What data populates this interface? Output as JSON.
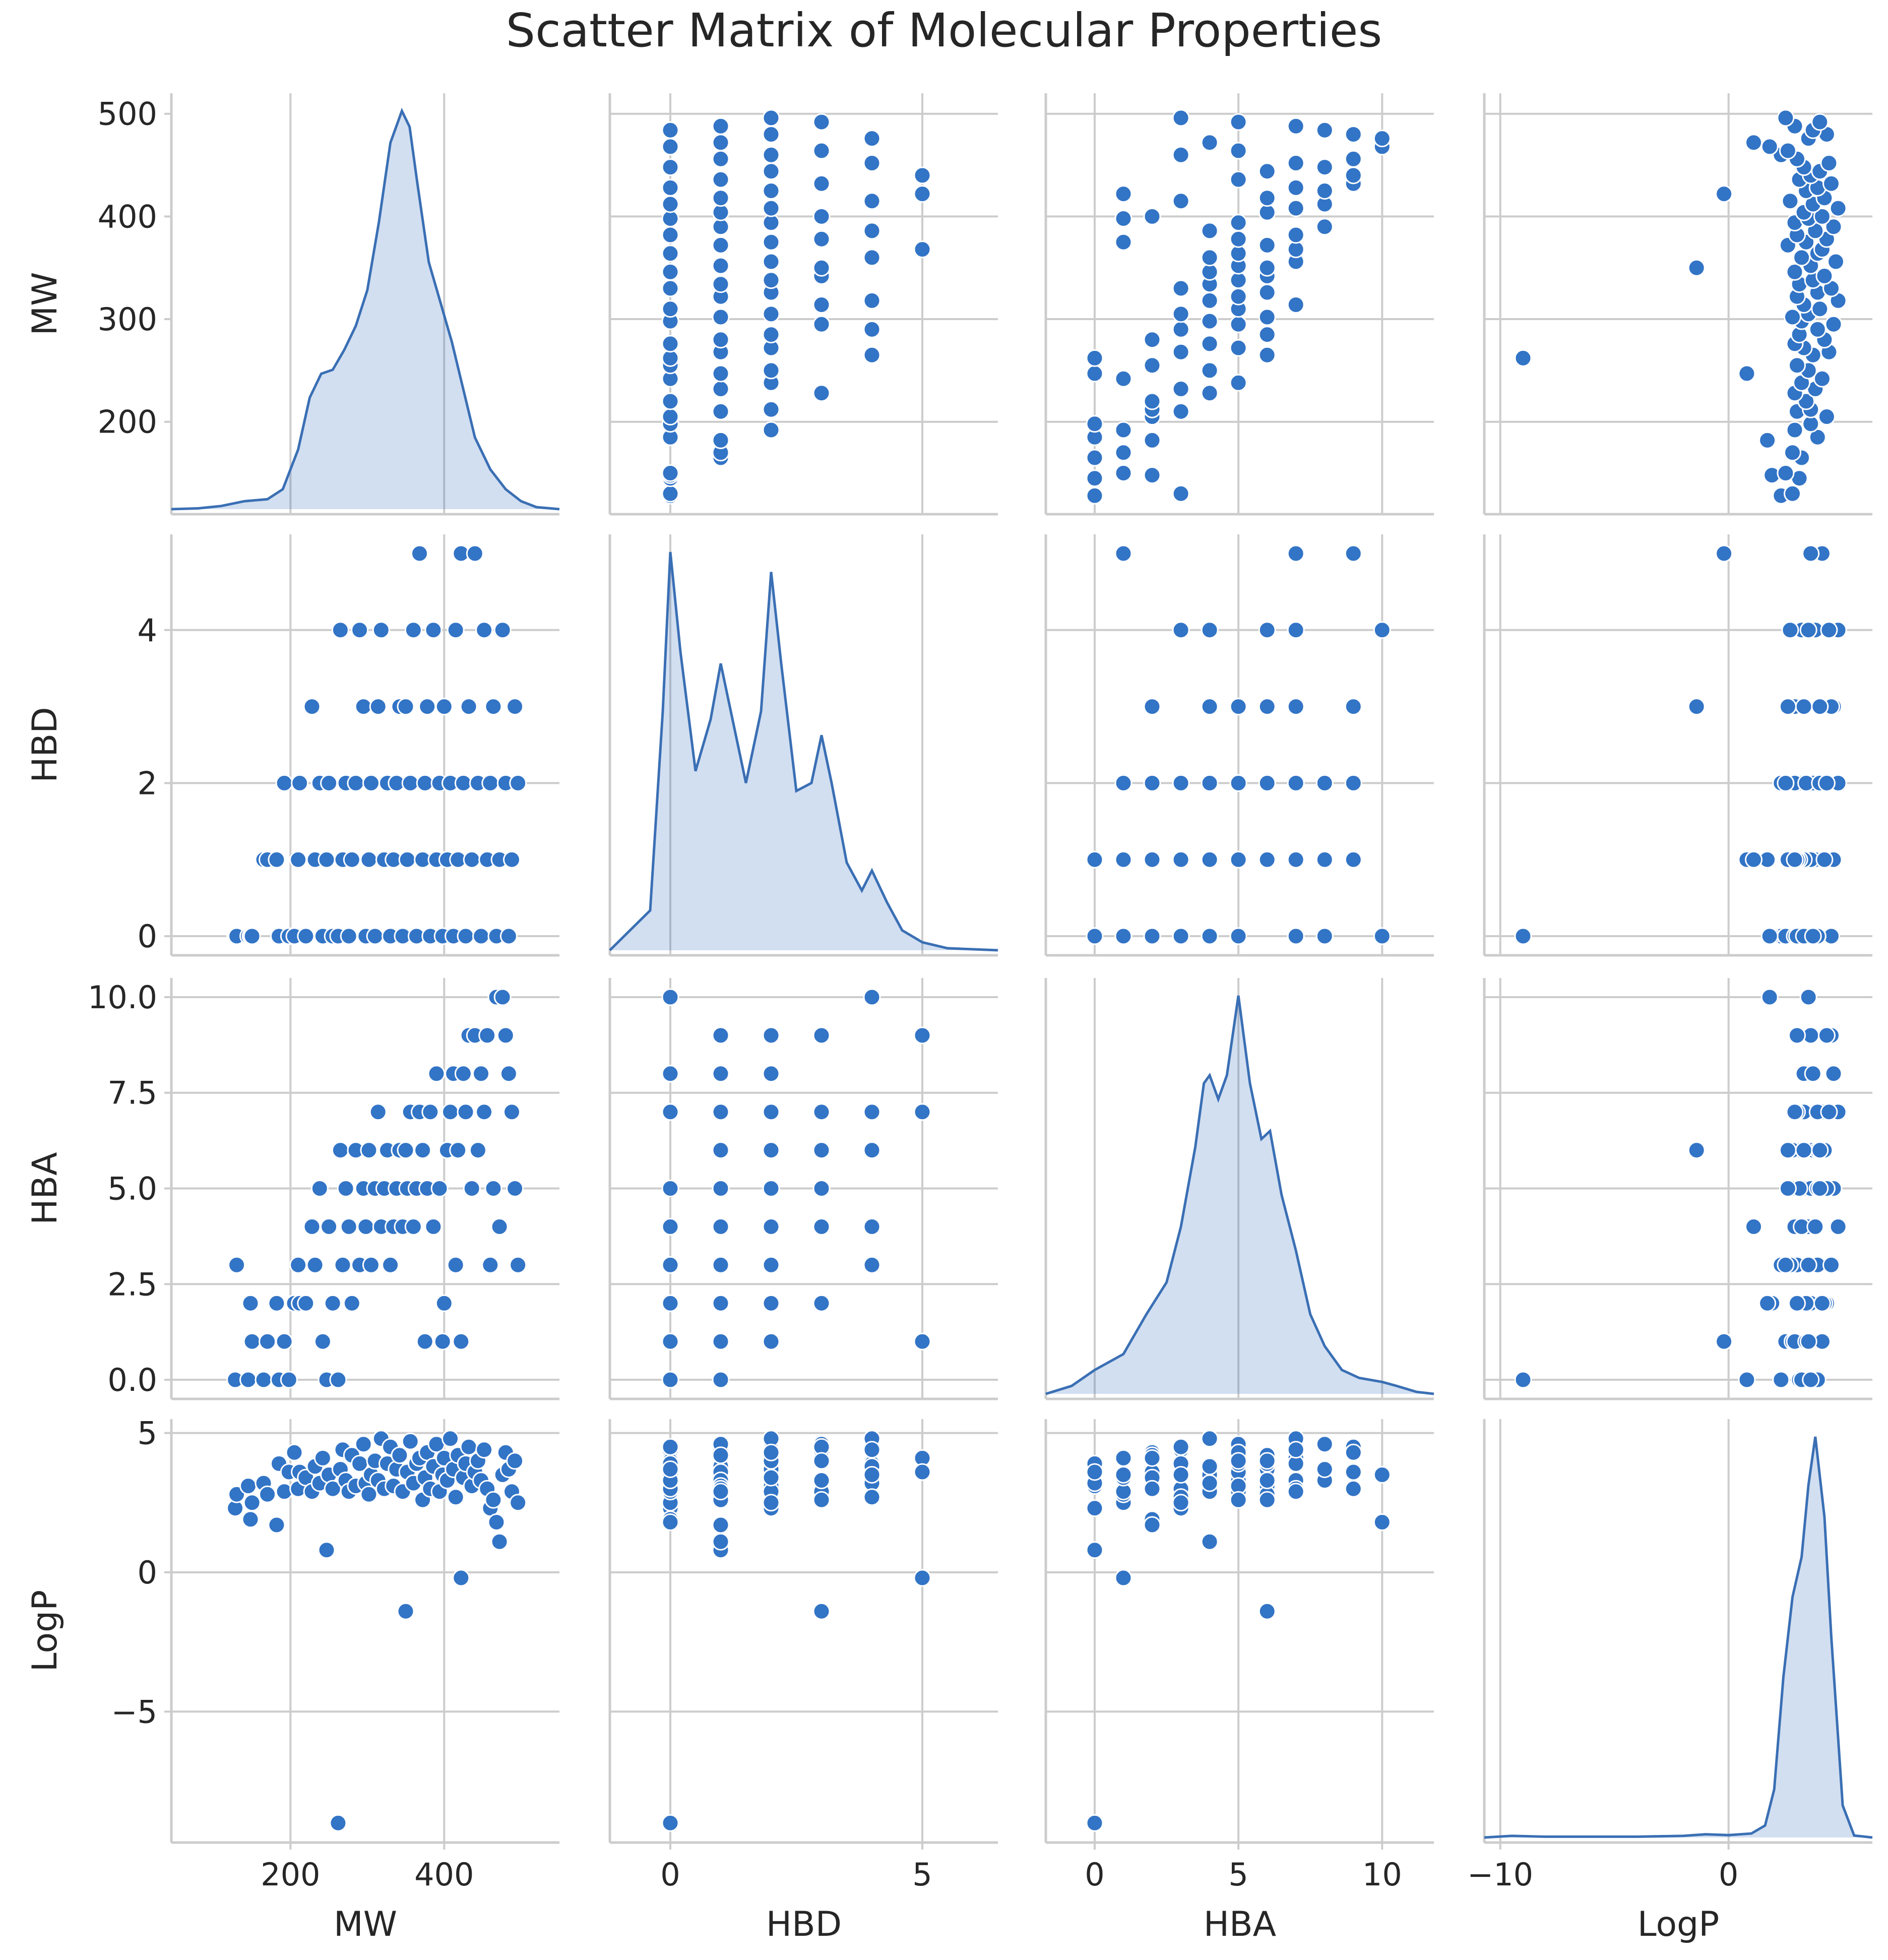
{
  "chart_data": {
    "type": "scatter",
    "title": "Scatter Matrix of Molecular Properties",
    "variables": [
      "MW",
      "HBD",
      "HBA",
      "LogP"
    ],
    "axes": {
      "MW": {
        "lim": [
          45,
          550
        ],
        "ticks": [
          200,
          400
        ],
        "tick_labels": [
          "200",
          "400"
        ]
      },
      "HBD": {
        "lim": [
          -1.2,
          6.5
        ],
        "ticks": [
          0,
          5
        ],
        "tick_labels": [
          "0",
          "5"
        ]
      },
      "HBA": {
        "lim": [
          -1.7,
          11.8
        ],
        "ticks": [
          0,
          5,
          10
        ],
        "tick_labels": [
          "0",
          "5",
          "10"
        ]
      },
      "LogP": {
        "lim": [
          -10.7,
          6.3
        ],
        "ticks": [
          -10,
          0
        ],
        "tick_labels": [
          "−10",
          "0"
        ]
      }
    },
    "row_ranges": {
      "MW": {
        "lim": [
          110,
          520
        ],
        "ticks": [
          200,
          300,
          400,
          500
        ],
        "tick_labels": [
          "200",
          "300",
          "400",
          "500"
        ]
      },
      "HBD": {
        "lim": [
          -0.25,
          5.25
        ],
        "ticks": [
          0,
          2,
          4
        ],
        "tick_labels": [
          "0",
          "2",
          "4"
        ]
      },
      "HBA": {
        "lim": [
          -0.5,
          10.5
        ],
        "ticks": [
          0,
          2.5,
          5,
          7.5,
          10
        ],
        "tick_labels": [
          "0.0",
          "2.5",
          "5.0",
          "7.5",
          "10.0"
        ]
      },
      "LogP": {
        "lim": [
          -9.7,
          5.5
        ],
        "ticks": [
          -5,
          0,
          5
        ],
        "tick_labels": [
          "−5",
          "0",
          "5"
        ]
      }
    },
    "diagonal": "kde",
    "grid": true,
    "legend": "none",
    "samples": [
      [
        128,
        0,
        0,
        2.3
      ],
      [
        130,
        0,
        3,
        2.8
      ],
      [
        145,
        0,
        0,
        3.1
      ],
      [
        148,
        0,
        2,
        1.9
      ],
      [
        150,
        0,
        1,
        2.5
      ],
      [
        165,
        1,
        0,
        3.2
      ],
      [
        170,
        1,
        1,
        2.8
      ],
      [
        182,
        1,
        2,
        1.7
      ],
      [
        185,
        0,
        0,
        3.9
      ],
      [
        192,
        2,
        1,
        2.9
      ],
      [
        198,
        0,
        0,
        3.6
      ],
      [
        205,
        0,
        2,
        4.3
      ],
      [
        210,
        1,
        3,
        3.0
      ],
      [
        212,
        2,
        2,
        3.6
      ],
      [
        220,
        0,
        2,
        3.4
      ],
      [
        228,
        3,
        4,
        2.9
      ],
      [
        232,
        1,
        3,
        3.8
      ],
      [
        238,
        2,
        5,
        3.2
      ],
      [
        242,
        0,
        1,
        4.1
      ],
      [
        247,
        1,
        0,
        0.8
      ],
      [
        250,
        2,
        4,
        3.5
      ],
      [
        255,
        0,
        2,
        3.0
      ],
      [
        262,
        0,
        0,
        -9.0
      ],
      [
        265,
        4,
        6,
        3.7
      ],
      [
        268,
        1,
        3,
        4.4
      ],
      [
        272,
        2,
        5,
        3.3
      ],
      [
        276,
        0,
        4,
        2.9
      ],
      [
        280,
        1,
        2,
        4.2
      ],
      [
        285,
        2,
        6,
        3.1
      ],
      [
        290,
        4,
        3,
        3.9
      ],
      [
        295,
        3,
        5,
        4.6
      ],
      [
        298,
        0,
        4,
        3.2
      ],
      [
        302,
        1,
        6,
        2.8
      ],
      [
        305,
        2,
        3,
        3.5
      ],
      [
        310,
        0,
        5,
        4.0
      ],
      [
        314,
        3,
        7,
        3.3
      ],
      [
        318,
        4,
        4,
        4.8
      ],
      [
        322,
        1,
        5,
        3.0
      ],
      [
        326,
        2,
        6,
        3.9
      ],
      [
        330,
        0,
        3,
        4.5
      ],
      [
        334,
        1,
        4,
        3.1
      ],
      [
        338,
        2,
        5,
        3.7
      ],
      [
        342,
        3,
        6,
        4.2
      ],
      [
        346,
        0,
        4,
        2.9
      ],
      [
        350,
        3,
        6,
        -1.4
      ],
      [
        352,
        1,
        5,
        3.6
      ],
      [
        356,
        2,
        7,
        4.7
      ],
      [
        360,
        4,
        4,
        3.2
      ],
      [
        364,
        0,
        5,
        3.9
      ],
      [
        368,
        5,
        7,
        4.1
      ],
      [
        372,
        1,
        6,
        2.6
      ],
      [
        375,
        2,
        1,
        3.4
      ],
      [
        378,
        3,
        5,
        4.3
      ],
      [
        382,
        0,
        7,
        3.0
      ],
      [
        386,
        4,
        4,
        3.8
      ],
      [
        390,
        1,
        8,
        4.6
      ],
      [
        394,
        2,
        5,
        2.9
      ],
      [
        398,
        0,
        1,
        3.5
      ],
      [
        400,
        3,
        2,
        4.1
      ],
      [
        404,
        1,
        6,
        3.3
      ],
      [
        408,
        2,
        7,
        4.8
      ],
      [
        412,
        0,
        8,
        3.7
      ],
      [
        415,
        4,
        3,
        2.7
      ],
      [
        418,
        1,
        6,
        4.2
      ],
      [
        422,
        5,
        1,
        -0.2
      ],
      [
        425,
        2,
        8,
        3.4
      ],
      [
        428,
        0,
        7,
        3.9
      ],
      [
        432,
        3,
        9,
        4.5
      ],
      [
        436,
        1,
        5,
        3.1
      ],
      [
        440,
        5,
        9,
        3.6
      ],
      [
        444,
        2,
        6,
        4.0
      ],
      [
        448,
        0,
        8,
        3.3
      ],
      [
        452,
        4,
        7,
        4.4
      ],
      [
        456,
        1,
        9,
        3.0
      ],
      [
        460,
        2,
        3,
        2.3
      ],
      [
        464,
        3,
        5,
        2.6
      ],
      [
        468,
        0,
        10,
        1.8
      ],
      [
        472,
        1,
        4,
        1.1
      ],
      [
        476,
        4,
        10,
        3.5
      ],
      [
        480,
        2,
        9,
        4.3
      ],
      [
        484,
        0,
        8,
        3.7
      ],
      [
        488,
        1,
        7,
        2.9
      ],
      [
        492,
        3,
        5,
        4.0
      ],
      [
        496,
        2,
        3,
        2.5
      ]
    ],
    "kde_curves": {
      "MW": {
        "x": [
          45,
          80,
          110,
          140,
          170,
          190,
          210,
          225,
          240,
          255,
          270,
          285,
          300,
          315,
          330,
          345,
          355,
          365,
          380,
          395,
          410,
          425,
          440,
          460,
          480,
          500,
          520,
          550
        ],
        "y": [
          0,
          0.002,
          0.008,
          0.02,
          0.025,
          0.05,
          0.15,
          0.28,
          0.34,
          0.35,
          0.4,
          0.46,
          0.55,
          0.72,
          0.92,
          1.0,
          0.96,
          0.82,
          0.62,
          0.52,
          0.42,
          0.3,
          0.18,
          0.1,
          0.05,
          0.02,
          0.005,
          0
        ]
      },
      "HBD": {
        "x": [
          -1.2,
          -0.4,
          -0.15,
          0,
          0.2,
          0.5,
          0.8,
          1.0,
          1.2,
          1.5,
          1.8,
          2.0,
          2.2,
          2.5,
          2.8,
          3.0,
          3.2,
          3.5,
          3.8,
          4.0,
          4.3,
          4.6,
          5.0,
          5.5,
          6.5
        ],
        "y": [
          0,
          0.1,
          0.6,
          1.0,
          0.75,
          0.45,
          0.58,
          0.72,
          0.6,
          0.42,
          0.6,
          0.95,
          0.72,
          0.4,
          0.42,
          0.54,
          0.42,
          0.22,
          0.15,
          0.2,
          0.12,
          0.05,
          0.02,
          0.005,
          0
        ]
      },
      "HBA": {
        "x": [
          -1.7,
          -0.8,
          0,
          1,
          1.8,
          2.5,
          3,
          3.5,
          3.8,
          4,
          4.3,
          4.6,
          5,
          5.4,
          5.8,
          6.1,
          6.5,
          7,
          7.5,
          8,
          8.6,
          9.2,
          10,
          10.5,
          11.2,
          11.8
        ],
        "y": [
          0,
          0.02,
          0.06,
          0.1,
          0.2,
          0.28,
          0.42,
          0.62,
          0.78,
          0.8,
          0.74,
          0.8,
          1.0,
          0.78,
          0.64,
          0.66,
          0.5,
          0.36,
          0.2,
          0.12,
          0.06,
          0.04,
          0.03,
          0.02,
          0.005,
          0
        ]
      },
      "LogP": {
        "x": [
          -10.7,
          -9.5,
          -8,
          -6,
          -4,
          -2,
          -1,
          0,
          1,
          1.6,
          2.0,
          2.4,
          2.8,
          3.2,
          3.5,
          3.8,
          4.2,
          4.5,
          5,
          5.5,
          6.3
        ],
        "y": [
          0,
          0.004,
          0.002,
          0.002,
          0.002,
          0.004,
          0.008,
          0.006,
          0.01,
          0.03,
          0.12,
          0.4,
          0.6,
          0.7,
          0.88,
          1.0,
          0.8,
          0.5,
          0.08,
          0.005,
          0
        ]
      }
    }
  }
}
